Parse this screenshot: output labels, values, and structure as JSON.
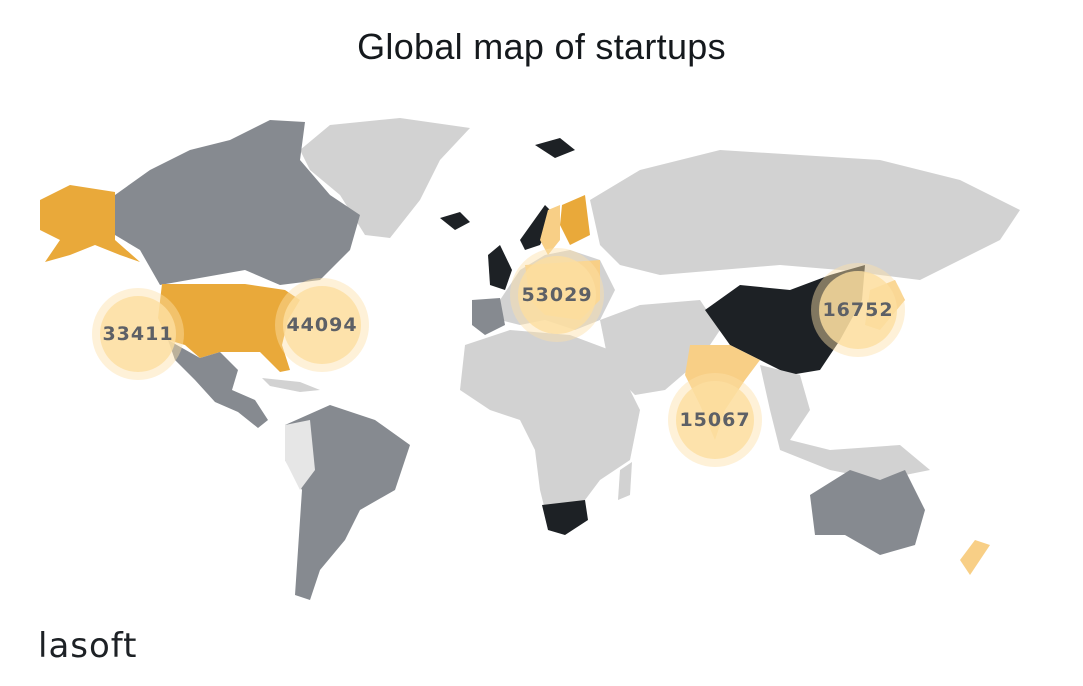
{
  "title": "Global map of startups",
  "logo_text": "lasoft",
  "colors": {
    "top_tier": "#1d2125",
    "high": "#e9a93a",
    "medium": "#868a90",
    "light_orange": "#f8cf86",
    "no_data": "#d2d2d2",
    "faint": "#e6e6e6",
    "bubble": "#fde0a8"
  },
  "bubbles": [
    {
      "region": "US West",
      "value": "33411"
    },
    {
      "region": "US East",
      "value": "44094"
    },
    {
      "region": "Europe",
      "value": "53029"
    },
    {
      "region": "East Asia",
      "value": "16752"
    },
    {
      "region": "India",
      "value": "15067"
    }
  ]
}
